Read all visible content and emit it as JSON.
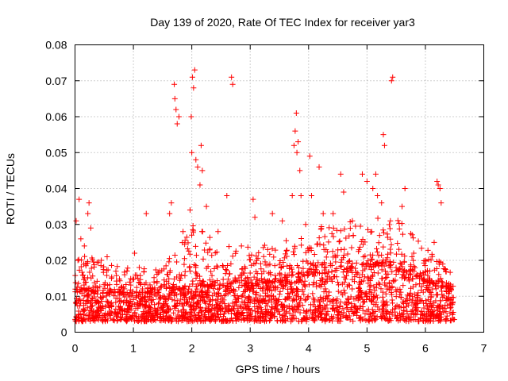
{
  "chart_data": {
    "type": "scatter",
    "title": "Day 139 of 2020, Rate Of TEC Index for receiver yar3",
    "xlabel": "GPS time / hours",
    "ylabel": "ROTI / TECUs",
    "xlim": [
      0,
      7
    ],
    "ylim": [
      0,
      0.08
    ],
    "xticks": [
      "0",
      "1",
      "2",
      "3",
      "4",
      "5",
      "6",
      "7"
    ],
    "yticks": [
      "0",
      "0.01",
      "0.02",
      "0.03",
      "0.04",
      "0.05",
      "0.06",
      "0.07",
      "0.08"
    ],
    "grid": true,
    "marker": "plus",
    "marker_color": "#ff0000",
    "series": [
      {
        "name": "yar3 ROTI",
        "points": [
          [
            0.02,
            0.031
          ],
          [
            0.05,
            0.02
          ],
          [
            0.07,
            0.037
          ],
          [
            0.1,
            0.026
          ],
          [
            0.16,
            0.024
          ],
          [
            0.22,
            0.033
          ],
          [
            0.24,
            0.036
          ],
          [
            0.27,
            0.029
          ],
          [
            0.45,
            0.02
          ],
          [
            0.55,
            0.021
          ],
          [
            0.7,
            0.017
          ],
          [
            0.85,
            0.016
          ],
          [
            1.02,
            0.022
          ],
          [
            1.1,
            0.018
          ],
          [
            1.22,
            0.033
          ],
          [
            1.45,
            0.017
          ],
          [
            1.62,
            0.033
          ],
          [
            1.65,
            0.036
          ],
          [
            1.7,
            0.069
          ],
          [
            1.71,
            0.065
          ],
          [
            1.73,
            0.062
          ],
          [
            1.75,
            0.058
          ],
          [
            1.78,
            0.06
          ],
          [
            1.85,
            0.028
          ],
          [
            1.97,
            0.034
          ],
          [
            1.99,
            0.06
          ],
          [
            2.0,
            0.05
          ],
          [
            2.01,
            0.071
          ],
          [
            2.03,
            0.068
          ],
          [
            2.05,
            0.073
          ],
          [
            2.07,
            0.048
          ],
          [
            2.1,
            0.046
          ],
          [
            2.14,
            0.041
          ],
          [
            2.16,
            0.052
          ],
          [
            2.18,
            0.045
          ],
          [
            2.25,
            0.035
          ],
          [
            2.45,
            0.028
          ],
          [
            2.6,
            0.038
          ],
          [
            2.68,
            0.071
          ],
          [
            2.7,
            0.069
          ],
          [
            2.85,
            0.024
          ],
          [
            3.05,
            0.037
          ],
          [
            3.08,
            0.032
          ],
          [
            3.3,
            0.023
          ],
          [
            3.38,
            0.033
          ],
          [
            3.55,
            0.031
          ],
          [
            3.72,
            0.038
          ],
          [
            3.75,
            0.052
          ],
          [
            3.77,
            0.056
          ],
          [
            3.79,
            0.061
          ],
          [
            3.8,
            0.05
          ],
          [
            3.82,
            0.053
          ],
          [
            3.85,
            0.045
          ],
          [
            3.87,
            0.038
          ],
          [
            3.95,
            0.03
          ],
          [
            4.02,
            0.049
          ],
          [
            4.05,
            0.038
          ],
          [
            4.18,
            0.046
          ],
          [
            4.25,
            0.033
          ],
          [
            4.42,
            0.033
          ],
          [
            4.55,
            0.044
          ],
          [
            4.6,
            0.039
          ],
          [
            4.75,
            0.031
          ],
          [
            4.92,
            0.044
          ],
          [
            5.0,
            0.042
          ],
          [
            5.1,
            0.04
          ],
          [
            5.15,
            0.044
          ],
          [
            5.18,
            0.038
          ],
          [
            5.25,
            0.036
          ],
          [
            5.28,
            0.055
          ],
          [
            5.3,
            0.052
          ],
          [
            5.4,
            0.031
          ],
          [
            5.42,
            0.07
          ],
          [
            5.44,
            0.071
          ],
          [
            5.6,
            0.035
          ],
          [
            5.65,
            0.04
          ],
          [
            5.8,
            0.022
          ],
          [
            6.0,
            0.02
          ],
          [
            6.15,
            0.025
          ],
          [
            6.2,
            0.042
          ],
          [
            6.22,
            0.041
          ],
          [
            6.25,
            0.04
          ],
          [
            6.27,
            0.036
          ],
          [
            6.4,
            0.012
          ]
        ],
        "density_profile": {
          "hours": [
            0,
            0.5,
            1.0,
            1.5,
            2.0,
            2.5,
            3.0,
            3.5,
            4.0,
            4.5,
            5.0,
            5.5,
            6.0,
            6.5
          ],
          "baseline_min": [
            0.003,
            0.003,
            0.003,
            0.003,
            0.003,
            0.003,
            0.003,
            0.003,
            0.003,
            0.003,
            0.003,
            0.003,
            0.003,
            0.003
          ],
          "baseline_max": [
            0.012,
            0.011,
            0.011,
            0.011,
            0.013,
            0.013,
            0.013,
            0.014,
            0.016,
            0.017,
            0.019,
            0.018,
            0.014,
            0.012
          ],
          "upper_envelope": [
            0.024,
            0.019,
            0.018,
            0.018,
            0.03,
            0.026,
            0.024,
            0.026,
            0.03,
            0.03,
            0.033,
            0.032,
            0.024,
            0.016
          ]
        }
      }
    ]
  }
}
